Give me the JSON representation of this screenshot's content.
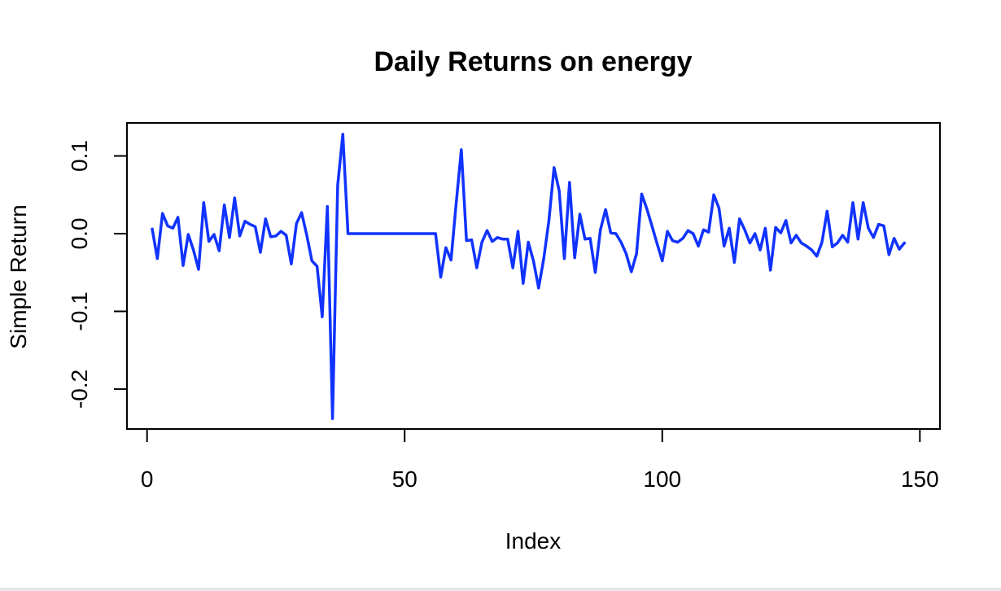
{
  "chart_data": {
    "type": "line",
    "title": "Daily Returns on energy",
    "xlabel": "Index",
    "ylabel": "Simple Return",
    "xlim": [
      -3.9,
      153.9
    ],
    "ylim": [
      -0.2514,
      0.1425
    ],
    "x_ticks": [
      {
        "value": 0,
        "label": "0"
      },
      {
        "value": 50,
        "label": "50"
      },
      {
        "value": 100,
        "label": "100"
      },
      {
        "value": 150,
        "label": "150"
      }
    ],
    "y_ticks": [
      {
        "value": -0.2,
        "label": "-0.2"
      },
      {
        "value": -0.1,
        "label": "-0.1"
      },
      {
        "value": 0.0,
        "label": "0.0"
      },
      {
        "value": 0.1,
        "label": "0.1"
      }
    ],
    "grid": false,
    "legend": "none",
    "series": [
      {
        "color": "#1133ff",
        "x_start": 1,
        "values": [
          0.006,
          -0.032,
          0.026,
          0.01,
          0.007,
          0.021,
          -0.041,
          -0.001,
          -0.021,
          -0.046,
          0.04,
          -0.01,
          -0.001,
          -0.022,
          0.037,
          -0.005,
          0.046,
          -0.003,
          0.016,
          0.012,
          0.009,
          -0.024,
          0.019,
          -0.004,
          -0.003,
          0.003,
          -0.002,
          -0.039,
          0.013,
          0.027,
          -0.002,
          -0.035,
          -0.042,
          -0.107,
          0.035,
          -0.238,
          0.062,
          0.128,
          0,
          0,
          0,
          0,
          0,
          0,
          0,
          0,
          0,
          0,
          0,
          0,
          0,
          0,
          0,
          0,
          0,
          0,
          -0.056,
          -0.018,
          -0.034,
          0.039,
          0.108,
          -0.009,
          -0.008,
          -0.044,
          -0.011,
          0.004,
          -0.01,
          -0.005,
          -0.007,
          -0.007,
          -0.044,
          0.003,
          -0.064,
          -0.011,
          -0.035,
          -0.07,
          -0.032,
          0.017,
          0.085,
          0.055,
          -0.032,
          0.066,
          -0.031,
          0.025,
          -0.007,
          -0.006,
          -0.05,
          0.005,
          0.031,
          0.001,
          0,
          -0.011,
          -0.026,
          -0.049,
          -0.026,
          0.051,
          0.032,
          0.01,
          -0.013,
          -0.035,
          0.003,
          -0.009,
          -0.011,
          -0.006,
          0.004,
          0,
          -0.016,
          0.005,
          0.002,
          0.05,
          0.033,
          -0.016,
          0.007,
          -0.037,
          0.019,
          0.005,
          -0.012,
          0,
          -0.021,
          0.007,
          -0.047,
          0.008,
          0.001,
          0.017,
          -0.012,
          -0.002,
          -0.012,
          -0.016,
          -0.021,
          -0.029,
          -0.011,
          0.029,
          -0.017,
          -0.012,
          -0.002,
          -0.011,
          0.04,
          -0.007,
          0.04,
          0.007,
          -0.005,
          0.012,
          0.01,
          -0.027,
          -0.006,
          -0.02,
          -0.012
        ]
      }
    ]
  }
}
